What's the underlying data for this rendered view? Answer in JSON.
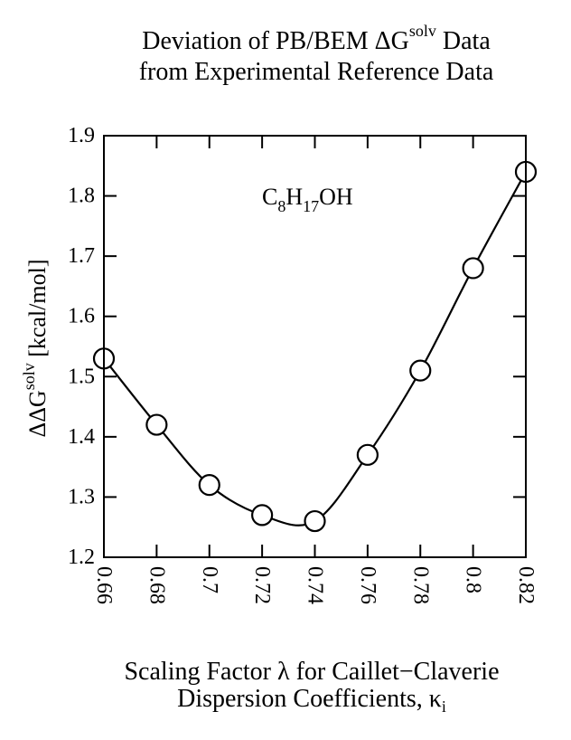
{
  "title": {
    "line1_prefix": "Deviation of PB/BEM ΔG",
    "line1_sup": "solv",
    "line1_suffix": " Data",
    "line2": "from Experimental Reference Data"
  },
  "xlabel": {
    "line1": "Scaling Factor λ for Caillet−Claverie",
    "line2_prefix": "Dispersion Coefficients, κ",
    "line2_sub": "i"
  },
  "ylabel": {
    "prefix": "ΔΔG",
    "sup": "solv",
    "suffix": " [kcal/mol]"
  },
  "annotation": {
    "base": "C",
    "sub1": "8",
    "mid": "H",
    "sub2": "17",
    "end": "OH"
  },
  "chart_data": {
    "type": "line",
    "title": "Deviation of PB/BEM ΔGsolv Data from Experimental Reference Data",
    "xlabel": "Scaling Factor λ for Caillet−Claverie Dispersion Coefficients, κi",
    "ylabel": "ΔΔGsolv [kcal/mol]",
    "xlim": [
      0.66,
      0.82
    ],
    "ylim": [
      1.2,
      1.9
    ],
    "xticks": [
      "0.66",
      "0.68",
      "0.7",
      "0.72",
      "0.74",
      "0.76",
      "0.78",
      "0.8",
      "0.82"
    ],
    "yticks": [
      "1.2",
      "1.3",
      "1.4",
      "1.5",
      "1.6",
      "1.7",
      "1.8",
      "1.9"
    ],
    "x": [
      0.66,
      0.68,
      0.7,
      0.72,
      0.74,
      0.76,
      0.78,
      0.8,
      0.82
    ],
    "y": [
      1.53,
      1.42,
      1.32,
      1.27,
      1.26,
      1.37,
      1.51,
      1.68,
      1.84
    ],
    "marker": "open-circle",
    "grid": false,
    "legend": "none",
    "annotations": [
      "C8H17OH"
    ]
  }
}
